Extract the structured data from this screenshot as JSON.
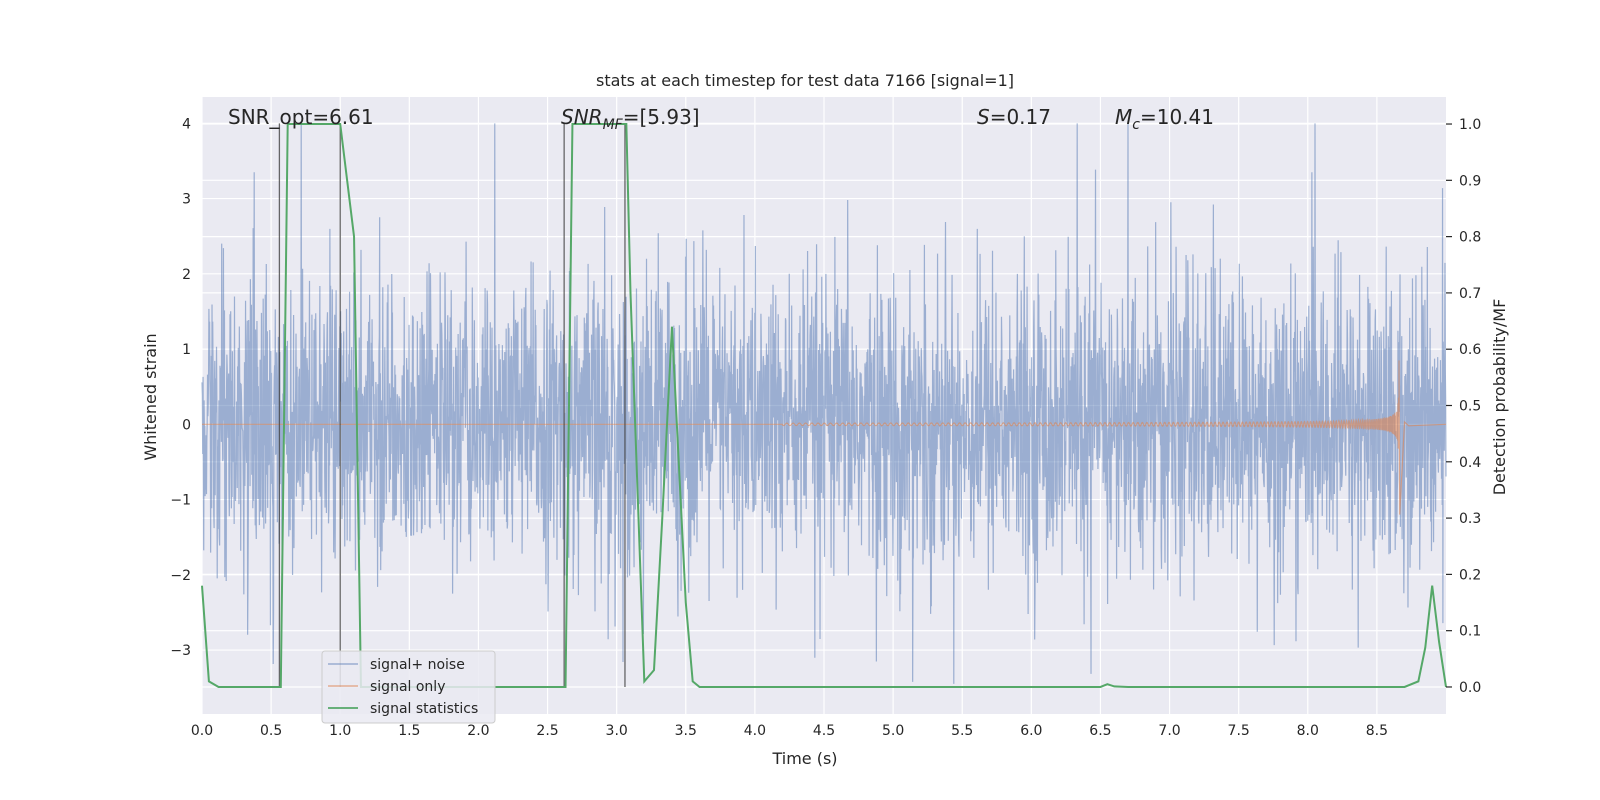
{
  "chart_data": {
    "type": "line",
    "title": "stats at each timestep for test data 7166 [signal=1]",
    "xlabel": "Time (s)",
    "ylabel": "Whitened strain",
    "y2label": "Detection probability/MF",
    "xlim": [
      0,
      9.0
    ],
    "ylim": [
      -3.85,
      4.35
    ],
    "y2lim": [
      -0.048,
      1.048
    ],
    "x_ticks": [
      0.0,
      0.5,
      1.0,
      1.5,
      2.0,
      2.5,
      3.0,
      3.5,
      4.0,
      4.5,
      5.0,
      5.5,
      6.0,
      6.5,
      7.0,
      7.5,
      8.0,
      8.5
    ],
    "x_tick_labels": [
      "0.0",
      "0.5",
      "1.0",
      "1.5",
      "2.0",
      "2.5",
      "3.0",
      "3.5",
      "4.0",
      "4.5",
      "5.0",
      "5.5",
      "6.0",
      "6.5",
      "7.0",
      "7.5",
      "8.0",
      "8.5"
    ],
    "y_ticks": [
      -3,
      -2,
      -1,
      0,
      1,
      2,
      3,
      4
    ],
    "y_tick_labels": [
      "−3",
      "−2",
      "−1",
      "0",
      "1",
      "2",
      "3",
      "4"
    ],
    "y2_ticks": [
      0.0,
      0.1,
      0.2,
      0.3,
      0.4,
      0.5,
      0.6,
      0.7,
      0.8,
      0.9,
      1.0
    ],
    "y2_tick_labels": [
      "0.0",
      "0.1",
      "0.2",
      "0.3",
      "0.4",
      "0.5",
      "0.6",
      "0.7",
      "0.8",
      "0.9",
      "1.0"
    ],
    "grid": true,
    "legend_position": "bottom-left",
    "annotations": {
      "snr_opt": "SNR_opt=6.61",
      "snr_mf_main": "SNR",
      "snr_mf_sub": "MF",
      "snr_mf_rest": "=[5.93]",
      "s_main": "S",
      "s_rest": "=0.17",
      "mc_main": "M",
      "mc_sub": "c",
      "mc_rest": "=10.41"
    },
    "vertical_markers": [
      0.56,
      1.0,
      2.62,
      3.06
    ],
    "series": [
      {
        "name": "signal+ noise",
        "color": "#4c72b0",
        "axis": "left",
        "amplitude_core": 1.5,
        "amplitude_peak": 4.0,
        "x_range": [
          0,
          9.0
        ]
      },
      {
        "name": "signal only",
        "color": "#dd8452",
        "axis": "left",
        "chirp_start": 4.2,
        "chirp_peak_time": 8.66,
        "chirp_peak_amplitude": 0.85,
        "chirp_min_amplitude": -1.2
      },
      {
        "name": "signal statistics",
        "color": "#55a868",
        "axis": "right",
        "x": [
          0.0,
          0.05,
          0.12,
          0.2,
          0.3,
          0.4,
          0.5,
          0.55,
          0.57,
          0.62,
          0.7,
          0.8,
          0.9,
          1.0,
          1.1,
          1.15,
          1.3,
          1.5,
          2.0,
          2.5,
          2.6,
          2.63,
          2.68,
          2.75,
          2.9,
          3.07,
          3.1,
          3.2,
          3.27,
          3.33,
          3.4,
          3.5,
          3.55,
          3.6,
          3.7,
          4.0,
          5.0,
          6.0,
          6.4,
          6.5,
          6.55,
          6.6,
          6.7,
          7.0,
          8.0,
          8.7,
          8.8,
          8.85,
          8.9,
          8.95,
          9.0
        ],
        "y": [
          0.18,
          0.01,
          0.0,
          0.0,
          0.0,
          0.0,
          0.0,
          0.0,
          0.0,
          1.0,
          1.0,
          1.0,
          1.0,
          1.0,
          0.8,
          0.0,
          0.0,
          0.0,
          0.0,
          0.0,
          0.0,
          0.0,
          1.0,
          1.0,
          1.0,
          1.0,
          0.7,
          0.01,
          0.03,
          0.3,
          0.64,
          0.15,
          0.01,
          0.0,
          0.0,
          0.0,
          0.0,
          0.0,
          0.0,
          0.0,
          0.005,
          0.001,
          0.0,
          0.0,
          0.0,
          0.0,
          0.01,
          0.07,
          0.18,
          0.08,
          0.0
        ]
      }
    ]
  }
}
